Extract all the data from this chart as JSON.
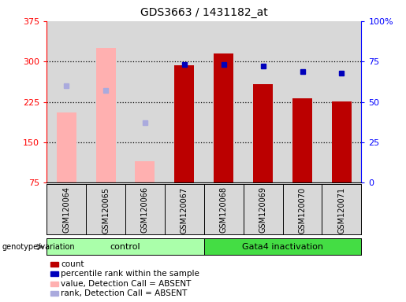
{
  "title": "GDS3663 / 1431182_at",
  "samples": [
    "GSM120064",
    "GSM120065",
    "GSM120066",
    "GSM120067",
    "GSM120068",
    "GSM120069",
    "GSM120070",
    "GSM120071"
  ],
  "count_values": [
    null,
    null,
    null,
    293,
    315,
    258,
    232,
    226
  ],
  "percentile_rank": [
    null,
    null,
    null,
    73,
    73,
    72,
    69,
    68
  ],
  "absent_value": [
    205,
    325,
    115,
    null,
    null,
    null,
    null,
    null
  ],
  "absent_rank": [
    60,
    57,
    37,
    null,
    null,
    null,
    null,
    null
  ],
  "ylim_left": [
    75,
    375
  ],
  "ylim_right": [
    0,
    100
  ],
  "yticks_left": [
    75,
    150,
    225,
    300,
    375
  ],
  "ytick_labels_left": [
    "75",
    "150",
    "225",
    "300",
    "375"
  ],
  "ytick_labels_right": [
    "0",
    "25",
    "50",
    "75",
    "100%"
  ],
  "bar_color_red": "#bb0000",
  "bar_color_pink": "#ffb0b0",
  "dot_color_blue": "#0000bb",
  "dot_color_lightblue": "#aaaadd",
  "group_color_light": "#aaffaa",
  "group_color_dark": "#44dd44",
  "bg_color": "#d8d8d8",
  "bar_width": 0.5,
  "control_count": 4,
  "total_samples": 8
}
